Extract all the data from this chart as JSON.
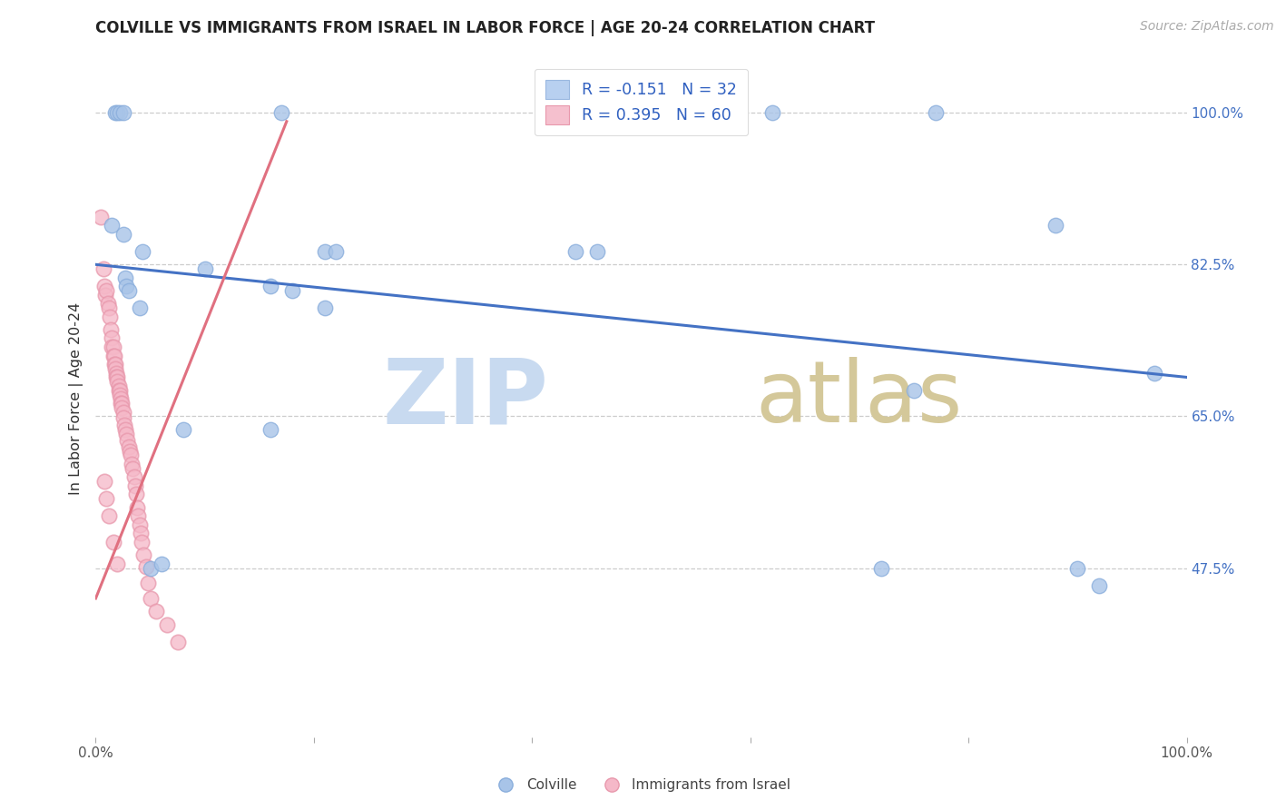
{
  "title": "COLVILLE VS IMMIGRANTS FROM ISRAEL IN LABOR FORCE | AGE 20-24 CORRELATION CHART",
  "source": "Source: ZipAtlas.com",
  "ylabel": "In Labor Force | Age 20-24",
  "xlim": [
    0.0,
    1.0
  ],
  "ylim": [
    0.28,
    1.06
  ],
  "ytick_vals": [
    0.475,
    0.65,
    0.825,
    1.0
  ],
  "ytick_labels": [
    "47.5%",
    "65.0%",
    "82.5%",
    "100.0%"
  ],
  "xtick_vals": [
    0.0,
    0.2,
    0.4,
    0.6,
    0.8,
    1.0
  ],
  "xtick_labels": [
    "0.0%",
    "",
    "",
    "",
    "",
    "100.0%"
  ],
  "legend_labels": [
    "R = -0.151   N = 32",
    "R = 0.395   N = 60"
  ],
  "bottom_legend": [
    "Colville",
    "Immigrants from Israel"
  ],
  "blue_color": "#a8c4e8",
  "blue_edge": "#8aaedc",
  "pink_color": "#f5b8c8",
  "pink_edge": "#e898ac",
  "trend_blue_color": "#4472c4",
  "trend_pink_color": "#e07080",
  "colville_x": [
    0.018,
    0.02,
    0.022,
    0.025,
    0.17,
    0.62,
    0.015,
    0.025,
    0.04,
    0.21,
    0.22,
    0.043,
    0.027,
    0.028,
    0.03,
    0.16,
    0.18,
    0.44,
    0.46,
    0.21,
    0.1,
    0.08,
    0.16,
    0.05,
    0.06,
    0.75,
    0.72,
    0.77,
    0.88,
    0.9,
    0.92,
    0.97
  ],
  "colville_y": [
    1.0,
    1.0,
    1.0,
    1.0,
    1.0,
    1.0,
    0.87,
    0.86,
    0.775,
    0.84,
    0.84,
    0.84,
    0.81,
    0.8,
    0.795,
    0.8,
    0.795,
    0.84,
    0.84,
    0.775,
    0.82,
    0.635,
    0.635,
    0.475,
    0.48,
    0.68,
    0.475,
    1.0,
    0.87,
    0.475,
    0.455,
    0.7
  ],
  "israel_x": [
    0.005,
    0.007,
    0.008,
    0.009,
    0.01,
    0.011,
    0.012,
    0.013,
    0.014,
    0.015,
    0.015,
    0.016,
    0.016,
    0.017,
    0.017,
    0.018,
    0.018,
    0.019,
    0.019,
    0.02,
    0.02,
    0.021,
    0.021,
    0.022,
    0.022,
    0.023,
    0.023,
    0.024,
    0.024,
    0.025,
    0.025,
    0.026,
    0.027,
    0.028,
    0.029,
    0.03,
    0.031,
    0.032,
    0.033,
    0.034,
    0.035,
    0.036,
    0.037,
    0.038,
    0.039,
    0.04,
    0.041,
    0.042,
    0.044,
    0.046,
    0.048,
    0.05,
    0.055,
    0.065,
    0.075,
    0.008,
    0.01,
    0.012,
    0.016,
    0.02
  ],
  "israel_y": [
    0.88,
    0.82,
    0.8,
    0.79,
    0.795,
    0.78,
    0.775,
    0.765,
    0.75,
    0.74,
    0.73,
    0.73,
    0.72,
    0.72,
    0.71,
    0.71,
    0.705,
    0.7,
    0.695,
    0.695,
    0.69,
    0.685,
    0.68,
    0.68,
    0.675,
    0.67,
    0.665,
    0.665,
    0.66,
    0.655,
    0.648,
    0.64,
    0.635,
    0.63,
    0.622,
    0.615,
    0.61,
    0.605,
    0.595,
    0.59,
    0.58,
    0.57,
    0.56,
    0.545,
    0.535,
    0.525,
    0.515,
    0.505,
    0.49,
    0.477,
    0.458,
    0.44,
    0.425,
    0.41,
    0.39,
    0.575,
    0.555,
    0.535,
    0.505,
    0.48
  ],
  "blue_trend_x": [
    0.0,
    1.0
  ],
  "blue_trend_y": [
    0.825,
    0.695
  ],
  "pink_trend_x": [
    0.0,
    0.175
  ],
  "pink_trend_y": [
    0.44,
    0.99
  ]
}
